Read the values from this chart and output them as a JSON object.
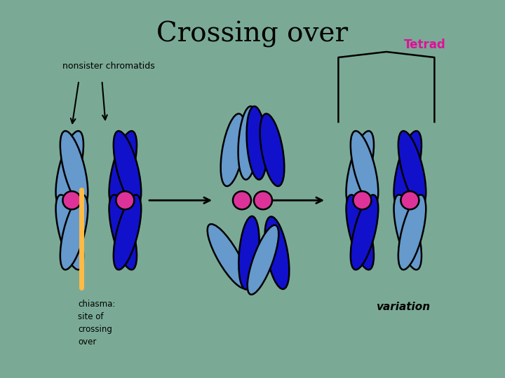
{
  "title": "Crossing over",
  "title_fontsize": 28,
  "background_color": "#7aaa96",
  "label_nonsister": "nonsister chromatids",
  "label_chiasma": "chiasma:\nsite of\ncrossing\nover",
  "label_tetrad": "Tetrad",
  "label_variation": "variation",
  "tetrad_color": "#dd1199",
  "dark_blue": "#1111cc",
  "light_blue": "#6699cc",
  "pink": "#dd3399",
  "orange": "#ffbb44",
  "text_color": "#000000",
  "g1x": 0.195,
  "g2x": 0.5,
  "g3x": 0.77,
  "gy": 0.47
}
